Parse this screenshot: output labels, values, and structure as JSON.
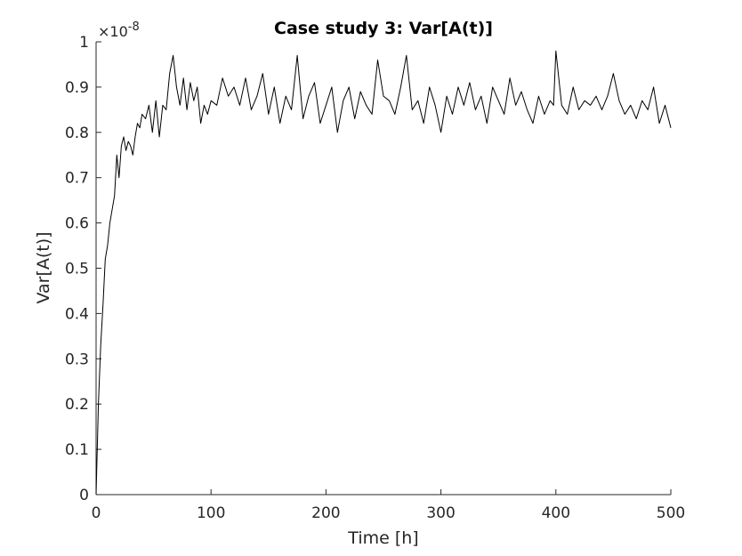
{
  "chart_data": {
    "type": "line",
    "title": "Case study 3: Var[A(t)]",
    "xlabel": "Time [h]",
    "ylabel": "Var[A(t)]",
    "y_multiplier_label": "×10^-8",
    "xlim": [
      0,
      500
    ],
    "ylim": [
      0,
      1
    ],
    "x_ticks": [
      "0",
      "100",
      "200",
      "300",
      "400",
      "500"
    ],
    "y_ticks": [
      "0",
      "0.1",
      "0.2",
      "0.3",
      "0.4",
      "0.5",
      "0.6",
      "0.7",
      "0.8",
      "0.9",
      "1"
    ],
    "grid": false,
    "line_color": "#000000",
    "series": [
      {
        "x": [
          0,
          2,
          4,
          6,
          8,
          10,
          12,
          14,
          16,
          18,
          20,
          22,
          24,
          26,
          28,
          30,
          32,
          34,
          36,
          38,
          40,
          43,
          46,
          49,
          52,
          55,
          58,
          61,
          64,
          67,
          70,
          73,
          76,
          79,
          82,
          85,
          88,
          91,
          94,
          97,
          100,
          105,
          110,
          115,
          120,
          125,
          130,
          135,
          140,
          145,
          150,
          155,
          160,
          165,
          170,
          175,
          180,
          185,
          190,
          195,
          200,
          205,
          210,
          215,
          220,
          225,
          230,
          235,
          240,
          245,
          250,
          255,
          260,
          265,
          270,
          275,
          280,
          285,
          290,
          295,
          300,
          305,
          310,
          315,
          320,
          325,
          330,
          335,
          340,
          345,
          350,
          355,
          360,
          365,
          370,
          375,
          380,
          385,
          390,
          395,
          398,
          400,
          405,
          410,
          415,
          420,
          425,
          430,
          435,
          440,
          445,
          450,
          455,
          460,
          465,
          470,
          475,
          480,
          485,
          490,
          495,
          500
        ],
        "y": [
          0.0,
          0.2,
          0.33,
          0.42,
          0.52,
          0.55,
          0.6,
          0.63,
          0.66,
          0.75,
          0.7,
          0.77,
          0.79,
          0.76,
          0.78,
          0.77,
          0.75,
          0.79,
          0.82,
          0.81,
          0.84,
          0.83,
          0.86,
          0.8,
          0.87,
          0.79,
          0.86,
          0.85,
          0.93,
          0.97,
          0.9,
          0.86,
          0.92,
          0.85,
          0.91,
          0.87,
          0.9,
          0.82,
          0.86,
          0.84,
          0.87,
          0.86,
          0.92,
          0.88,
          0.9,
          0.86,
          0.92,
          0.85,
          0.88,
          0.93,
          0.84,
          0.9,
          0.82,
          0.88,
          0.85,
          0.97,
          0.83,
          0.88,
          0.91,
          0.82,
          0.86,
          0.9,
          0.8,
          0.87,
          0.9,
          0.83,
          0.89,
          0.86,
          0.84,
          0.96,
          0.88,
          0.87,
          0.84,
          0.9,
          0.97,
          0.85,
          0.87,
          0.82,
          0.9,
          0.86,
          0.8,
          0.88,
          0.84,
          0.9,
          0.86,
          0.91,
          0.85,
          0.88,
          0.82,
          0.9,
          0.87,
          0.84,
          0.92,
          0.86,
          0.89,
          0.85,
          0.82,
          0.88,
          0.84,
          0.87,
          0.86,
          0.98,
          0.86,
          0.84,
          0.9,
          0.85,
          0.87,
          0.86,
          0.88,
          0.85,
          0.88,
          0.93,
          0.87,
          0.84,
          0.86,
          0.83,
          0.87,
          0.85,
          0.9,
          0.82,
          0.86,
          0.81
        ]
      }
    ]
  }
}
